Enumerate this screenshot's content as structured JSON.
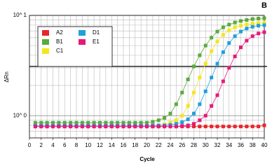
{
  "chart_data": {
    "type": "line",
    "panel_label": "B",
    "xlabel": "Cycle",
    "ylabel": "ΔRn",
    "log_y": true,
    "x": [
      1,
      2,
      3,
      4,
      5,
      6,
      7,
      8,
      9,
      10,
      11,
      12,
      13,
      14,
      15,
      16,
      17,
      18,
      19,
      20,
      21,
      22,
      23,
      24,
      25,
      26,
      27,
      28,
      29,
      30,
      31,
      32,
      33,
      34,
      35,
      36,
      37,
      38,
      39,
      40
    ],
    "xlim": [
      0,
      40
    ],
    "xticks": [
      0,
      2,
      4,
      6,
      8,
      10,
      12,
      14,
      16,
      18,
      20,
      22,
      24,
      26,
      28,
      30,
      32,
      34,
      36,
      38,
      40
    ],
    "ylim": [
      0.6,
      10
    ],
    "yticks": [
      {
        "value": 1,
        "label": "10^ 0"
      },
      {
        "value": 10,
        "label": "10^ 1"
      }
    ],
    "yminor": [
      0.7,
      0.8,
      0.9,
      2,
      3,
      4,
      5,
      6,
      7,
      8,
      9
    ],
    "grid": true,
    "threshold": 3.1,
    "series": [
      {
        "name": "A2",
        "color": "#e8262b",
        "values": [
          0.78,
          0.78,
          0.78,
          0.78,
          0.78,
          0.78,
          0.78,
          0.78,
          0.78,
          0.78,
          0.78,
          0.78,
          0.78,
          0.78,
          0.78,
          0.78,
          0.78,
          0.78,
          0.78,
          0.78,
          0.78,
          0.78,
          0.78,
          0.78,
          0.78,
          0.78,
          0.78,
          0.78,
          0.78,
          0.78,
          0.78,
          0.78,
          0.78,
          0.78,
          0.78,
          0.78,
          0.78,
          0.78,
          0.78,
          0.8
        ]
      },
      {
        "name": "B1",
        "color": "#5aaa3c",
        "values": [
          0.85,
          0.85,
          0.85,
          0.85,
          0.85,
          0.85,
          0.85,
          0.85,
          0.85,
          0.85,
          0.85,
          0.85,
          0.85,
          0.85,
          0.85,
          0.85,
          0.85,
          0.85,
          0.85,
          0.85,
          0.87,
          0.9,
          0.95,
          1.05,
          1.3,
          1.7,
          2.3,
          3.1,
          4.0,
          5.0,
          6.0,
          6.9,
          7.6,
          8.1,
          8.5,
          8.8,
          9.0,
          9.2,
          9.3,
          9.4
        ]
      },
      {
        "name": "C1",
        "color": "#f5e51c",
        "values": [
          0.8,
          0.8,
          0.8,
          0.8,
          0.8,
          0.8,
          0.8,
          0.8,
          0.8,
          0.8,
          0.8,
          0.8,
          0.8,
          0.8,
          0.8,
          0.8,
          0.8,
          0.8,
          0.8,
          0.8,
          0.8,
          0.8,
          0.82,
          0.85,
          0.9,
          1.0,
          1.25,
          1.7,
          2.4,
          3.3,
          4.4,
          5.5,
          6.4,
          7.1,
          7.6,
          7.9,
          8.1,
          8.3,
          8.4,
          8.5
        ]
      },
      {
        "name": "D1",
        "color": "#1ea0dc",
        "values": [
          0.8,
          0.8,
          0.8,
          0.8,
          0.8,
          0.8,
          0.8,
          0.8,
          0.8,
          0.8,
          0.8,
          0.8,
          0.8,
          0.8,
          0.8,
          0.8,
          0.8,
          0.8,
          0.8,
          0.8,
          0.8,
          0.8,
          0.8,
          0.81,
          0.83,
          0.86,
          0.92,
          1.05,
          1.3,
          1.75,
          2.4,
          3.3,
          4.3,
          5.3,
          6.2,
          6.9,
          7.4,
          7.7,
          7.9,
          8.0
        ]
      },
      {
        "name": "E1",
        "color": "#e5197c",
        "values": [
          0.78,
          0.78,
          0.78,
          0.78,
          0.78,
          0.78,
          0.78,
          0.78,
          0.78,
          0.78,
          0.78,
          0.78,
          0.78,
          0.78,
          0.78,
          0.78,
          0.78,
          0.78,
          0.78,
          0.78,
          0.78,
          0.78,
          0.78,
          0.78,
          0.78,
          0.79,
          0.8,
          0.83,
          0.9,
          1.0,
          1.25,
          1.6,
          2.2,
          3.0,
          3.9,
          4.8,
          5.6,
          6.2,
          6.6,
          6.8
        ]
      }
    ]
  }
}
